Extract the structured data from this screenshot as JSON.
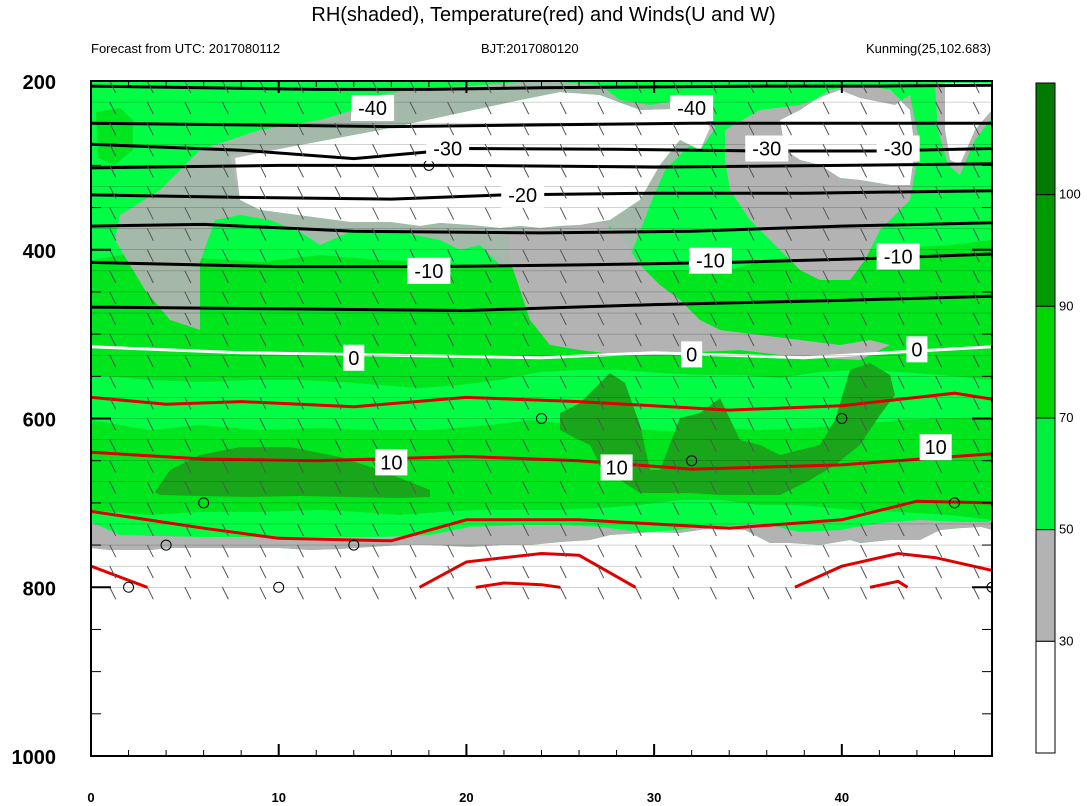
{
  "header": {
    "title": "RH(shaded), Temperature(red) and Winds(U and W)",
    "left_label": "Forecast from UTC: 2017080112",
    "center_label": "BJT:2017080120",
    "right_label": "Kunming(25,102.683)"
  },
  "chart_data": {
    "type": "heatmap",
    "title": "RH(shaded), Temperature(red) and Winds(U and W)",
    "x_ticks": [
      0,
      10,
      20,
      30,
      40
    ],
    "xlim": [
      0,
      48
    ],
    "y_ticks": [
      200,
      400,
      600,
      800,
      1000
    ],
    "ylim": [
      1000,
      200
    ],
    "y_reversed": true,
    "colorbar": {
      "levels": [
        30,
        50,
        70,
        90,
        100
      ],
      "labels": [
        "30",
        "50",
        "70",
        "90",
        "100"
      ],
      "colors": [
        "#ffffff",
        "#b3b3b3",
        "#00f040",
        "#00d600",
        "#009900",
        "#007a00"
      ]
    },
    "temperature_contours": [
      {
        "value": -40,
        "label": "-40",
        "color": "#000000",
        "points": [
          [
            0,
            206
          ],
          [
            6,
            208
          ],
          [
            12,
            210
          ],
          [
            18,
            210
          ],
          [
            24,
            208
          ],
          [
            30,
            207
          ],
          [
            36,
            206
          ],
          [
            42,
            206
          ],
          [
            48,
            205
          ]
        ],
        "label_positions": [
          [
            15,
            232
          ],
          [
            32,
            232
          ]
        ]
      },
      {
        "value": -35,
        "label": "",
        "color": "#000000",
        "points": [
          [
            0,
            250
          ],
          [
            8,
            252
          ],
          [
            16,
            254
          ],
          [
            24,
            252
          ],
          [
            32,
            250
          ],
          [
            40,
            250
          ],
          [
            48,
            250
          ]
        ]
      },
      {
        "value": -30,
        "label": "-30",
        "color": "#000000",
        "points": [
          [
            0,
            275
          ],
          [
            8,
            282
          ],
          [
            14,
            292
          ],
          [
            20,
            280
          ],
          [
            28,
            281
          ],
          [
            36,
            283
          ],
          [
            42,
            283
          ],
          [
            48,
            280
          ]
        ],
        "label_positions": [
          [
            19,
            280
          ],
          [
            36,
            280
          ],
          [
            43,
            280
          ]
        ]
      },
      {
        "value": -25,
        "label": "",
        "color": "#000000",
        "points": [
          [
            0,
            303
          ],
          [
            10,
            300
          ],
          [
            20,
            300
          ],
          [
            30,
            302
          ],
          [
            40,
            300
          ],
          [
            48,
            298
          ]
        ]
      },
      {
        "value": -20,
        "label": "-20",
        "color": "#000000",
        "points": [
          [
            0,
            335
          ],
          [
            8,
            338
          ],
          [
            16,
            340
          ],
          [
            22,
            335
          ],
          [
            30,
            333
          ],
          [
            38,
            333
          ],
          [
            48,
            330
          ]
        ],
        "label_positions": [
          [
            23,
            335
          ]
        ]
      },
      {
        "value": -15,
        "label": "",
        "color": "#000000",
        "points": [
          [
            0,
            372
          ],
          [
            6,
            370
          ],
          [
            14,
            378
          ],
          [
            24,
            380
          ],
          [
            32,
            378
          ],
          [
            40,
            372
          ],
          [
            48,
            368
          ]
        ]
      },
      {
        "value": -10,
        "label": "-10",
        "color": "#000000",
        "points": [
          [
            0,
            415
          ],
          [
            10,
            420
          ],
          [
            18,
            420
          ],
          [
            26,
            418
          ],
          [
            34,
            415
          ],
          [
            42,
            410
          ],
          [
            48,
            405
          ]
        ],
        "label_positions": [
          [
            18,
            425
          ],
          [
            33,
            413
          ],
          [
            43,
            408
          ]
        ]
      },
      {
        "value": -5,
        "label": "",
        "color": "#000000",
        "points": [
          [
            0,
            468
          ],
          [
            10,
            470
          ],
          [
            20,
            472
          ],
          [
            30,
            465
          ],
          [
            40,
            460
          ],
          [
            48,
            455
          ]
        ]
      },
      {
        "value": 0,
        "label": "0",
        "color": "#ffffff",
        "points": [
          [
            0,
            515
          ],
          [
            8,
            522
          ],
          [
            16,
            525
          ],
          [
            24,
            528
          ],
          [
            30,
            522
          ],
          [
            38,
            528
          ],
          [
            44,
            520
          ],
          [
            48,
            515
          ]
        ],
        "label_positions": [
          [
            14,
            528
          ],
          [
            32,
            524
          ],
          [
            44,
            518
          ]
        ]
      },
      {
        "value": 5,
        "label": "",
        "color": "#e00000",
        "points": [
          [
            0,
            575
          ],
          [
            4,
            583
          ],
          [
            8,
            580
          ],
          [
            14,
            586
          ],
          [
            20,
            575
          ],
          [
            26,
            580
          ],
          [
            34,
            590
          ],
          [
            40,
            585
          ],
          [
            46,
            570
          ],
          [
            48,
            577
          ]
        ]
      },
      {
        "value": 10,
        "label": "10",
        "color": "#e00000",
        "points": [
          [
            0,
            640
          ],
          [
            6,
            648
          ],
          [
            12,
            650
          ],
          [
            20,
            645
          ],
          [
            26,
            650
          ],
          [
            32,
            660
          ],
          [
            40,
            655
          ],
          [
            46,
            645
          ],
          [
            48,
            642
          ]
        ],
        "label_positions": [
          [
            16,
            652
          ],
          [
            28,
            658
          ],
          [
            45,
            634
          ]
        ]
      },
      {
        "value": 15,
        "label": "",
        "color": "#e00000",
        "points": [
          [
            0,
            710
          ],
          [
            6,
            730
          ],
          [
            10,
            742
          ],
          [
            16,
            745
          ],
          [
            20,
            720
          ],
          [
            26,
            720
          ],
          [
            34,
            730
          ],
          [
            40,
            720
          ],
          [
            44,
            698
          ],
          [
            48,
            700
          ]
        ]
      },
      {
        "value": 20,
        "label": "",
        "color": "#e00000",
        "points": [
          [
            0,
            775
          ],
          [
            3,
            800
          ]
        ]
      },
      {
        "value": 20,
        "label": "",
        "color": "#e00000",
        "points": [
          [
            17.5,
            800
          ],
          [
            20,
            770
          ],
          [
            24,
            760
          ],
          [
            26,
            762
          ],
          [
            29,
            800
          ]
        ]
      },
      {
        "value": 20,
        "label": "",
        "color": "#e00000",
        "points": [
          [
            37.5,
            800
          ],
          [
            40,
            775
          ],
          [
            43,
            760
          ],
          [
            45,
            765
          ],
          [
            48,
            780
          ]
        ]
      },
      {
        "value": 25,
        "label": "",
        "color": "#e00000",
        "points": [
          [
            20.5,
            800
          ],
          [
            22,
            795
          ],
          [
            24,
            797
          ],
          [
            25,
            800
          ]
        ]
      },
      {
        "value": 25,
        "label": "",
        "color": "#e00000",
        "points": [
          [
            41.5,
            800
          ],
          [
            43,
            793
          ],
          [
            43.5,
            800
          ]
        ]
      }
    ],
    "wind_barbs": "present",
    "calm_markers": [
      [
        2,
        800
      ],
      [
        4,
        750
      ],
      [
        6,
        700
      ],
      [
        10,
        800
      ],
      [
        14,
        750
      ],
      [
        18,
        300
      ],
      [
        24,
        600
      ],
      [
        32,
        650
      ],
      [
        40,
        600
      ],
      [
        46,
        700
      ],
      [
        48,
        800
      ]
    ]
  }
}
